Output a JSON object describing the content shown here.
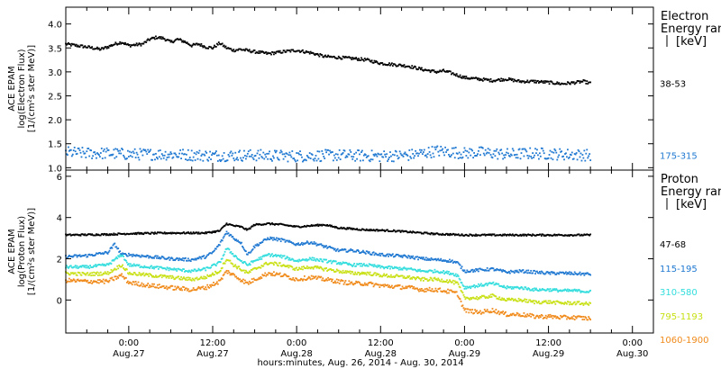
{
  "x_axis": {
    "title": "hours:minutes, Aug. 26, 2014 - Aug. 30, 2014",
    "range_hours": [
      -9,
      75
    ],
    "major_ticks": [
      {
        "t": 0,
        "time": "0:00",
        "date": "Aug.27"
      },
      {
        "t": 12,
        "time": "12:00",
        "date": "Aug.27"
      },
      {
        "t": 24,
        "time": "0:00",
        "date": "Aug.28"
      },
      {
        "t": 36,
        "time": "12:00",
        "date": "Aug.28"
      },
      {
        "t": 48,
        "time": "0:00",
        "date": "Aug.29"
      },
      {
        "t": 60,
        "time": "12:00",
        "date": "Aug.29"
      },
      {
        "t": 72,
        "time": "0:00",
        "date": "Aug.30"
      }
    ]
  },
  "chart_data": [
    {
      "type": "scatter",
      "name": "electron",
      "ylabel_lines": [
        "ACE EPAM",
        "log(Electron Flux)",
        "[1/(cm²s ster MeV)]"
      ],
      "ylim": [
        0.95,
        4.35
      ],
      "yticks": [
        "4.0",
        "3.5",
        "3.0",
        "2.5",
        "2.0",
        "1.5",
        "1.0"
      ],
      "side_title": [
        "Electron",
        "Energy ranges",
        "[keV]"
      ],
      "series": [
        {
          "name": "38-53",
          "color": "#000000",
          "jitter": 0.03,
          "x": [
            -9,
            -6,
            -4,
            -3,
            -2,
            -1,
            0,
            2,
            3,
            4,
            5,
            6,
            7,
            8,
            9,
            10,
            11,
            12,
            13,
            14,
            15,
            16,
            18,
            20,
            22,
            24,
            26,
            28,
            30,
            32,
            34,
            36,
            38,
            40,
            42,
            44,
            45,
            46,
            48,
            50,
            52,
            54,
            56,
            58,
            60,
            62,
            64,
            65,
            66
          ],
          "y": [
            3.58,
            3.52,
            3.47,
            3.52,
            3.58,
            3.62,
            3.55,
            3.58,
            3.68,
            3.72,
            3.7,
            3.62,
            3.68,
            3.63,
            3.55,
            3.58,
            3.52,
            3.5,
            3.6,
            3.5,
            3.45,
            3.47,
            3.42,
            3.38,
            3.42,
            3.45,
            3.4,
            3.32,
            3.3,
            3.28,
            3.25,
            3.18,
            3.15,
            3.12,
            3.05,
            3.0,
            3.02,
            2.98,
            2.88,
            2.85,
            2.82,
            2.85,
            2.8,
            2.8,
            2.78,
            2.75,
            2.78,
            2.8,
            2.76
          ]
        },
        {
          "name": "175-315",
          "color": "#1f78d1",
          "jitter": 0.12,
          "x": [
            -9,
            -6,
            -3,
            0,
            6,
            12,
            18,
            24,
            30,
            36,
            40,
            42,
            44,
            46,
            48,
            50,
            54,
            58,
            62,
            66
          ],
          "y": [
            1.32,
            1.3,
            1.3,
            1.28,
            1.28,
            1.25,
            1.26,
            1.24,
            1.26,
            1.24,
            1.26,
            1.3,
            1.35,
            1.33,
            1.3,
            1.32,
            1.28,
            1.3,
            1.28,
            1.26
          ]
        }
      ]
    },
    {
      "type": "scatter",
      "name": "proton",
      "ylabel_lines": [
        "ACE EPAM",
        "log(Proton Flux)",
        "[1/(cm²s ster MeV)]"
      ],
      "ylim": [
        -1.6,
        6.3
      ],
      "yticks": [
        "6",
        "4",
        "2",
        "0"
      ],
      "side_title": [
        "Proton",
        "Energy ranges",
        "[keV]"
      ],
      "series": [
        {
          "name": "47-68",
          "color": "#000000",
          "jitter": 0.04,
          "x": [
            -9,
            -3,
            0,
            6,
            11,
            13,
            14,
            15,
            16,
            17,
            18,
            20,
            22,
            24,
            26,
            28,
            30,
            32,
            34,
            36,
            38,
            40,
            42,
            44,
            46,
            48,
            54,
            60,
            66
          ],
          "y": [
            3.15,
            3.18,
            3.22,
            3.25,
            3.25,
            3.35,
            3.7,
            3.6,
            3.55,
            3.4,
            3.65,
            3.7,
            3.65,
            3.55,
            3.6,
            3.65,
            3.5,
            3.45,
            3.4,
            3.38,
            3.35,
            3.3,
            3.25,
            3.2,
            3.18,
            3.15,
            3.15,
            3.15,
            3.15
          ]
        },
        {
          "name": "115-195",
          "color": "#1f78d1",
          "jitter": 0.07,
          "x": [
            -9,
            -6,
            -3,
            -2,
            -1,
            0,
            3,
            6,
            9,
            11,
            12,
            13,
            14,
            15,
            16,
            17,
            18,
            20,
            22,
            24,
            26,
            28,
            30,
            32,
            34,
            36,
            38,
            40,
            42,
            44,
            46,
            47,
            48,
            50,
            52,
            54,
            56,
            58,
            60,
            62,
            64,
            66
          ],
          "y": [
            2.1,
            2.15,
            2.3,
            2.7,
            2.2,
            2.2,
            2.1,
            2.0,
            1.95,
            2.1,
            2.3,
            2.7,
            3.3,
            3.0,
            2.8,
            2.2,
            2.6,
            3.0,
            2.9,
            2.7,
            2.8,
            2.6,
            2.4,
            2.4,
            2.3,
            2.2,
            2.15,
            2.1,
            2.0,
            1.95,
            1.9,
            1.8,
            1.4,
            1.45,
            1.5,
            1.35,
            1.4,
            1.35,
            1.3,
            1.3,
            1.28,
            1.25
          ]
        },
        {
          "name": "310-580",
          "color": "#33dddd",
          "jitter": 0.07,
          "x": [
            -9,
            -6,
            -3,
            -1,
            0,
            3,
            6,
            9,
            11,
            13,
            14,
            15,
            16,
            17,
            18,
            20,
            22,
            24,
            26,
            28,
            30,
            32,
            34,
            36,
            38,
            40,
            42,
            44,
            46,
            47,
            48,
            50,
            52,
            54,
            56,
            58,
            60,
            62,
            64,
            66
          ],
          "y": [
            1.6,
            1.6,
            1.7,
            2.2,
            1.7,
            1.6,
            1.5,
            1.4,
            1.5,
            1.8,
            2.5,
            2.2,
            1.9,
            1.7,
            1.9,
            2.2,
            2.1,
            1.9,
            2.0,
            1.9,
            1.8,
            1.7,
            1.7,
            1.6,
            1.55,
            1.5,
            1.4,
            1.4,
            1.3,
            1.2,
            0.6,
            0.7,
            0.8,
            0.6,
            0.6,
            0.5,
            0.5,
            0.45,
            0.45,
            0.4
          ]
        },
        {
          "name": "795-1193",
          "color": "#c8e014",
          "jitter": 0.08,
          "x": [
            -9,
            -6,
            -3,
            -1,
            0,
            3,
            6,
            9,
            11,
            13,
            14,
            15,
            16,
            17,
            18,
            20,
            22,
            24,
            26,
            28,
            30,
            32,
            34,
            36,
            38,
            40,
            42,
            44,
            46,
            47,
            48,
            50,
            52,
            54,
            56,
            58,
            60,
            62,
            64,
            66
          ],
          "y": [
            1.3,
            1.25,
            1.3,
            1.7,
            1.3,
            1.2,
            1.1,
            1.0,
            1.1,
            1.4,
            2.0,
            1.7,
            1.5,
            1.3,
            1.5,
            1.8,
            1.7,
            1.5,
            1.6,
            1.5,
            1.4,
            1.3,
            1.3,
            1.2,
            1.15,
            1.1,
            1.0,
            1.0,
            0.9,
            0.8,
            0.1,
            0.1,
            0.2,
            0.0,
            0.0,
            -0.1,
            -0.1,
            -0.15,
            -0.15,
            -0.2
          ]
        },
        {
          "name": "1060-1900",
          "color": "#f08a1a",
          "jitter": 0.1,
          "x": [
            -9,
            -6,
            -3,
            -1,
            0,
            3,
            6,
            9,
            11,
            13,
            14,
            15,
            16,
            17,
            18,
            20,
            22,
            24,
            26,
            28,
            30,
            32,
            34,
            36,
            38,
            40,
            42,
            44,
            46,
            47,
            48,
            50,
            52,
            54,
            56,
            58,
            60,
            62,
            64,
            66
          ],
          "y": [
            0.95,
            0.9,
            0.9,
            1.2,
            0.85,
            0.7,
            0.6,
            0.5,
            0.6,
            0.9,
            1.4,
            1.2,
            1.0,
            0.8,
            1.0,
            1.3,
            1.2,
            1.0,
            1.1,
            1.0,
            0.9,
            0.8,
            0.8,
            0.7,
            0.65,
            0.6,
            0.5,
            0.5,
            0.4,
            0.3,
            -0.5,
            -0.6,
            -0.5,
            -0.7,
            -0.7,
            -0.8,
            -0.8,
            -0.85,
            -0.85,
            -0.9
          ]
        }
      ]
    }
  ]
}
